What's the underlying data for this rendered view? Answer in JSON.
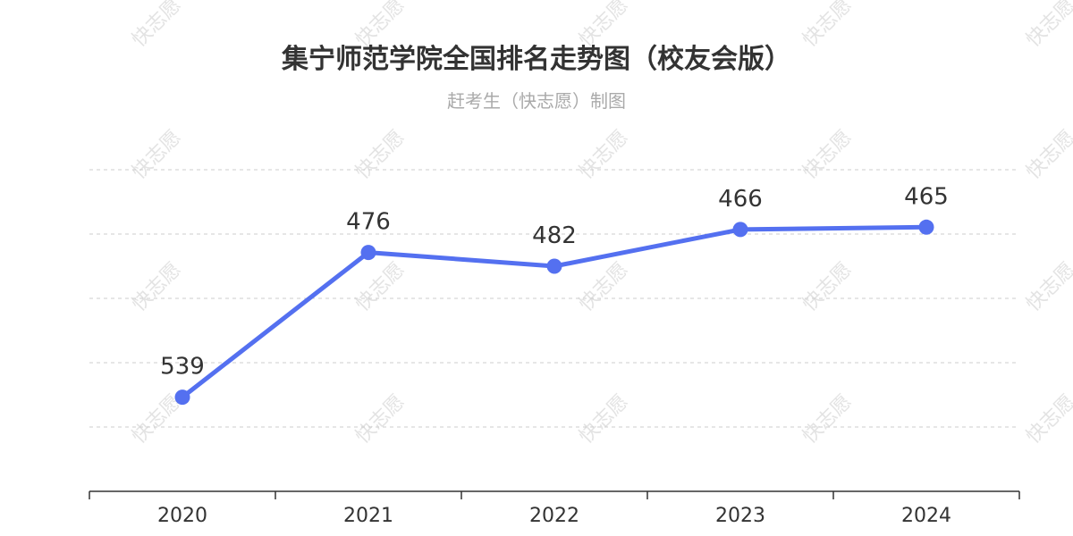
{
  "chart_data": {
    "type": "line",
    "title": "集宁师范学院全国排名走势图（校友会版）",
    "subtitle": "赶考生（快志愿）制图",
    "categories": [
      "2020",
      "2021",
      "2022",
      "2023",
      "2024"
    ],
    "series": [
      {
        "values": [
          539,
          476,
          482,
          466,
          465
        ],
        "color": "#5470f0"
      }
    ],
    "y_axis": {
      "inverted": true,
      "range": [
        440,
        580
      ],
      "tick_labels_shown": false
    },
    "grid": true,
    "watermark": "快志愿"
  }
}
